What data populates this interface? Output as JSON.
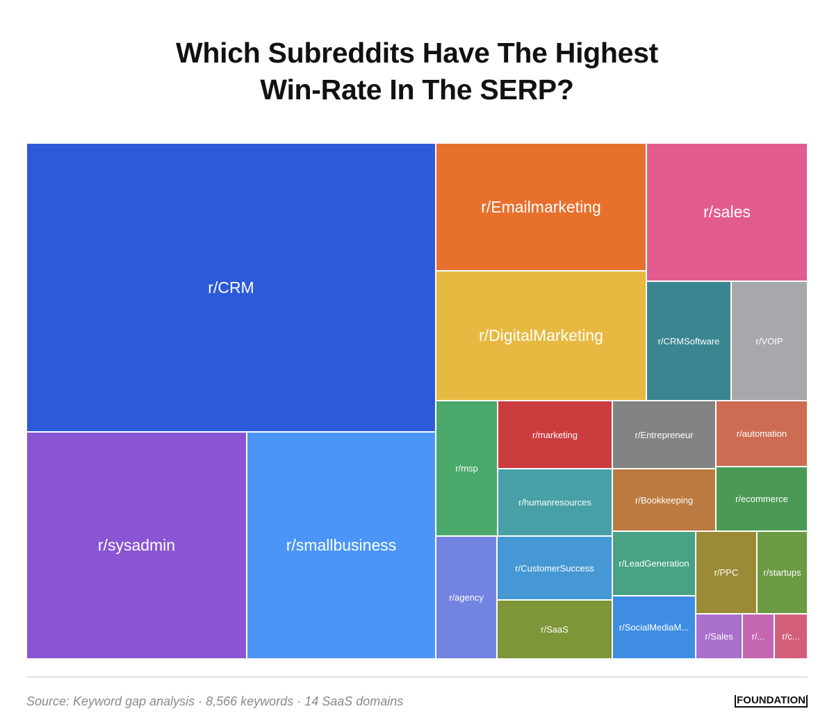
{
  "chart_data": {
    "type": "treemap",
    "title_lines": [
      "Which Subreddits Have The Highest",
      "Win-Rate In The SERP?"
    ],
    "value_note": "values are estimated relative area share (%)",
    "items": [
      {
        "label": "r/CRM",
        "value": 29.3,
        "color": "#2c5ad9"
      },
      {
        "label": "r/sysadmin",
        "value": 12.4,
        "color": "#8a55d3"
      },
      {
        "label": "r/smallbusiness",
        "value": 10.7,
        "color": "#4a95f7"
      },
      {
        "label": "r/Emailmarketing",
        "value": 6.7,
        "color": "#e8702d"
      },
      {
        "label": "r/DigitalMarketing",
        "value": 6.8,
        "color": "#e8b941"
      },
      {
        "label": "r/sales",
        "value": 5.5,
        "color": "#e25b8e"
      },
      {
        "label": "r/CRMSoftware",
        "value": 2.5,
        "color": "#3a8590"
      },
      {
        "label": "r/VOIP",
        "value": 2.3,
        "color": "#a6a8ab"
      },
      {
        "label": "r/msp",
        "value": 2.1,
        "color": "#4aa96a"
      },
      {
        "label": "r/agency",
        "value": 1.9,
        "color": "#7383e2"
      },
      {
        "label": "r/marketing",
        "value": 1.9,
        "color": "#cc3b3e"
      },
      {
        "label": "r/humanresources",
        "value": 1.9,
        "color": "#47a0a6"
      },
      {
        "label": "r/CustomerSuccess",
        "value": 1.8,
        "color": "#4598d3"
      },
      {
        "label": "r/SaaS",
        "value": 1.7,
        "color": "#7e9538"
      },
      {
        "label": "r/Entrepreneur",
        "value": 1.7,
        "color": "#838383"
      },
      {
        "label": "r/automation",
        "value": 1.5,
        "color": "#cc6c52"
      },
      {
        "label": "r/Bookkeeping",
        "value": 1.6,
        "color": "#bb7a3f"
      },
      {
        "label": "r/ecommerce",
        "value": 1.5,
        "color": "#4a9a55"
      },
      {
        "label": "r/LeadGeneration",
        "value": 1.3,
        "color": "#48a285"
      },
      {
        "label": "r/SocialMediaM...",
        "value": 1.3,
        "color": "#3e8de3"
      },
      {
        "label": "r/PPC",
        "value": 1.3,
        "color": "#9b8b36"
      },
      {
        "label": "r/startups",
        "value": 1.0,
        "color": "#6b9a43"
      },
      {
        "label": "r/Sales",
        "value": 0.5,
        "color": "#aa70cc"
      },
      {
        "label": "r/...",
        "value": 0.4,
        "color": "#c466b2"
      },
      {
        "label": "r/c...",
        "value": 0.4,
        "color": "#d35e7a"
      }
    ]
  },
  "footer": {
    "source": "Source: Keyword gap analysis · 8,566 keywords · 14 SaaS domains",
    "logo": "FOUNDATION"
  }
}
